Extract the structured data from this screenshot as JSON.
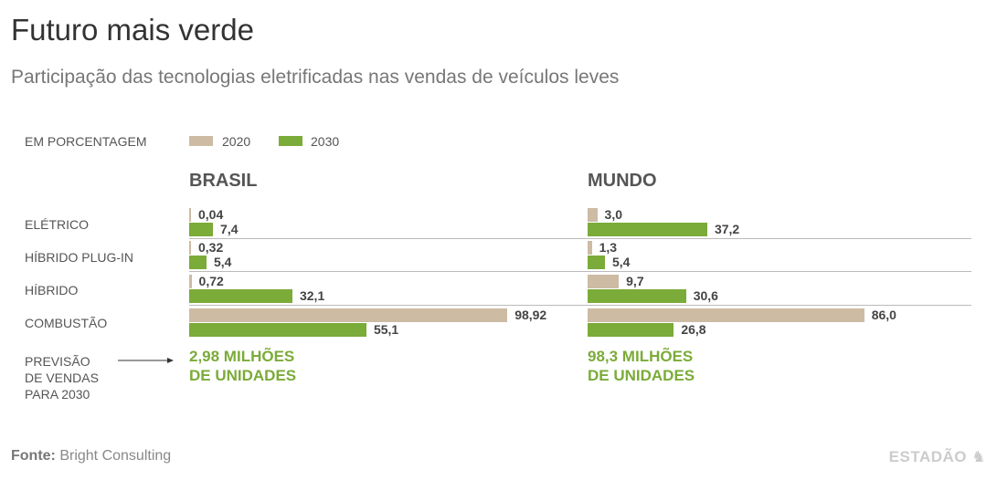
{
  "title": "Futuro mais verde",
  "subtitle": "Participação das tecnologias eletrificadas nas vendas de veículos leves",
  "unit_label": "EM PORCENTAGEM",
  "colors": {
    "2020": "#cdbba4",
    "2030": "#7bab38",
    "highlight": "#7bab38"
  },
  "chart_data": {
    "type": "bar",
    "orientation": "horizontal",
    "categories": [
      "ELÉTRICO",
      "HÍBRIDO PLUG-IN",
      "HÍBRIDO",
      "COMBUSTÃO"
    ],
    "legend": [
      "2020",
      "2030"
    ],
    "panels": [
      {
        "title": "BRASIL",
        "series": [
          {
            "name": "2020",
            "values": [
              0.04,
              0.32,
              0.72,
              98.92
            ],
            "labels": [
              "0,04",
              "0,32",
              "0,72",
              "98,92"
            ]
          },
          {
            "name": "2030",
            "values": [
              7.4,
              5.4,
              32.1,
              55.1
            ],
            "labels": [
              "7,4",
              "5,4",
              "32,1",
              "55,1"
            ]
          }
        ],
        "total": [
          "2,98 MILHÕES",
          "DE UNIDADES"
        ]
      },
      {
        "title": "MUNDO",
        "series": [
          {
            "name": "2020",
            "values": [
              3.0,
              1.3,
              9.7,
              86.0
            ],
            "labels": [
              "3,0",
              "1,3",
              "9,7",
              "86,0"
            ]
          },
          {
            "name": "2030",
            "values": [
              37.2,
              5.4,
              30.6,
              26.8
            ],
            "labels": [
              "37,2",
              "5,4",
              "30,6",
              "26,8"
            ]
          }
        ],
        "total": [
          "98,3 MILHÕES",
          "DE UNIDADES"
        ]
      }
    ]
  },
  "note": [
    "PREVISÃO",
    "DE VENDAS",
    "PARA 2030"
  ],
  "source": {
    "label": "Fonte:",
    "text": "Bright Consulting"
  },
  "logo": "ESTADÃO"
}
